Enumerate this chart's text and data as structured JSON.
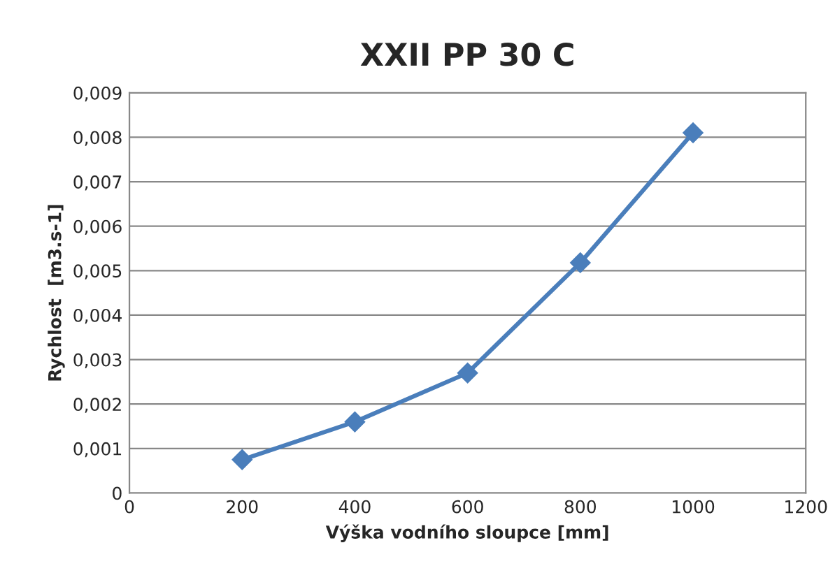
{
  "chart_data": {
    "type": "line",
    "title": "XXII PP 30 C",
    "xlabel": "Výška vodního sloupce [mm]",
    "ylabel": "Rychlost  [m3.s-1]",
    "x": [
      200,
      400,
      600,
      800,
      1000
    ],
    "series": [
      {
        "color": "#4a7ebb",
        "values": [
          0.00075,
          0.0016,
          0.0027,
          0.00518,
          0.0081
        ]
      }
    ],
    "xlim": [
      0,
      1200
    ],
    "xticks": [
      0,
      200,
      400,
      600,
      800,
      1000,
      1200
    ],
    "ylim": [
      0,
      0.009
    ],
    "yticks": [
      0,
      {
        "value": 0.001,
        "label": "0,001"
      },
      {
        "value": 0.002,
        "label": "0,002"
      },
      {
        "value": 0.003,
        "label": "0,003"
      },
      {
        "value": 0.004,
        "label": "0,004"
      },
      {
        "value": 0.005,
        "label": "0,005"
      },
      {
        "value": 0.006,
        "label": "0,006"
      },
      {
        "value": 0.007,
        "label": "0,007"
      },
      {
        "value": 0.008,
        "label": "0,008"
      },
      {
        "value": 0.009,
        "label": "0,009"
      }
    ],
    "grid": "y",
    "marker": "diamond",
    "line_style": "solid",
    "legend": false
  }
}
